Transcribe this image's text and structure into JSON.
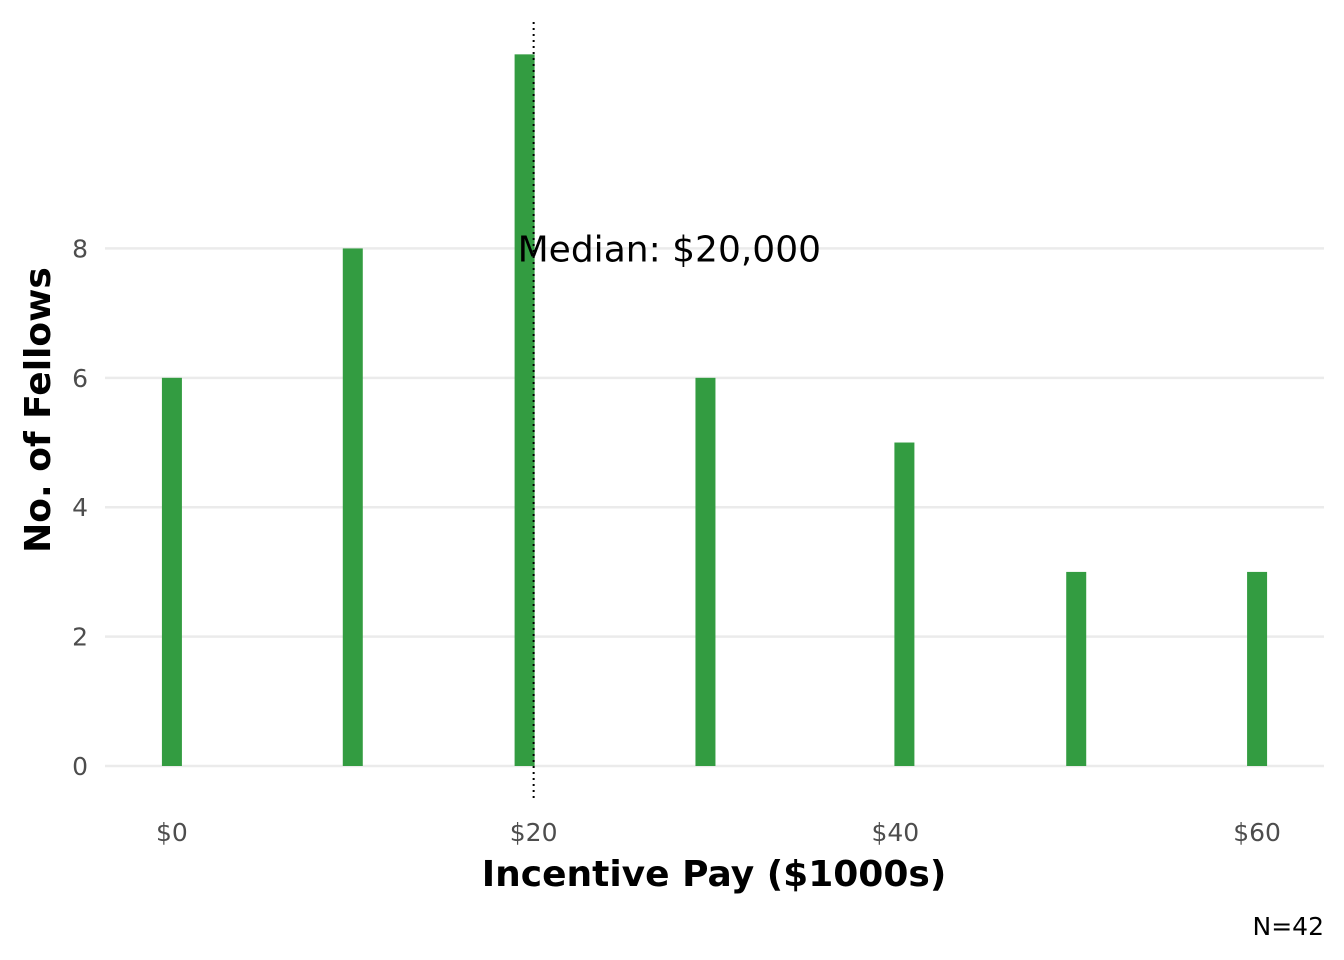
{
  "chart_data": {
    "type": "bar",
    "title": "",
    "xlabel": "Incentive Pay ($1000s)",
    "ylabel": "No. of Fellows",
    "caption": "N=42",
    "x": [
      0,
      10,
      19.5,
      29.5,
      40.5,
      50,
      60
    ],
    "values": [
      6,
      8,
      11,
      6,
      5,
      3,
      3
    ],
    "xlim": [
      -3.7,
      63.7
    ],
    "ylim": [
      0,
      11.5
    ],
    "x_ticks": [
      0,
      20,
      40,
      60
    ],
    "x_tick_labels": [
      "$0",
      "$20",
      "$40",
      "$60"
    ],
    "y_ticks": [
      0,
      2,
      4,
      6,
      8
    ],
    "y_tick_labels": [
      "0",
      "2",
      "4",
      "6",
      "8"
    ],
    "grid": "horizontal",
    "bar_color": "#339c41",
    "grid_color": "#ebebeb",
    "median_line": {
      "x": 20,
      "style": "dotted",
      "color": "#000000"
    },
    "annotation": {
      "text": "Median: $20,000",
      "x": 20,
      "y": 8
    }
  }
}
